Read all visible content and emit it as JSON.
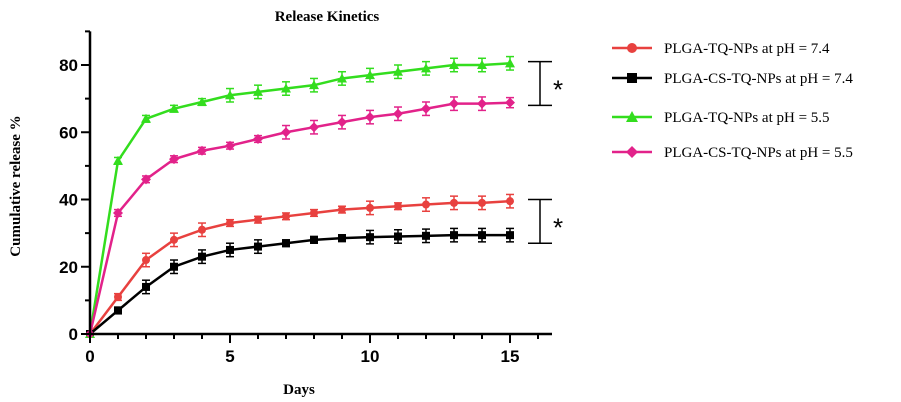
{
  "chart_data": {
    "type": "line",
    "title": "Release Kinetics",
    "xlabel": "Days",
    "ylabel": "Cumulative release %",
    "xlim": [
      0,
      16.5
    ],
    "ylim": [
      0,
      90
    ],
    "x_ticks": [
      0,
      5,
      10,
      15
    ],
    "y_ticks": [
      0,
      20,
      40,
      60,
      80
    ],
    "x": [
      0,
      1,
      2,
      3,
      4,
      5,
      6,
      7,
      8,
      9,
      10,
      11,
      12,
      13,
      14,
      15
    ],
    "series": [
      {
        "name": "PLGA-TQ-NPs at pH = 7.4",
        "color": "#e8413f",
        "marker": "circle",
        "values": [
          0,
          11,
          22,
          28,
          31,
          33,
          34,
          35,
          36,
          37,
          37.5,
          38,
          38.5,
          39,
          39,
          39.5
        ],
        "errors": [
          0,
          1,
          2,
          2,
          2,
          1,
          1,
          1,
          1,
          1,
          2,
          1,
          2,
          2,
          2,
          2
        ]
      },
      {
        "name": "PLGA-CS-TQ-NPs at pH = 7.4",
        "color": "#000000",
        "marker": "square",
        "values": [
          0,
          7,
          14,
          20,
          23,
          25,
          26,
          27,
          28,
          28.5,
          28.8,
          29,
          29.2,
          29.4,
          29.4,
          29.4
        ],
        "errors": [
          0,
          1,
          2,
          2,
          2,
          2,
          2,
          1,
          1,
          1,
          2,
          2,
          2,
          2,
          2,
          2
        ]
      },
      {
        "name": "PLGA-TQ-NPs at pH = 5.5",
        "color": "#33dd1e",
        "marker": "triangle",
        "values": [
          0,
          51.5,
          64,
          67,
          69,
          71,
          72,
          73,
          74,
          76,
          77,
          78,
          79,
          80,
          80,
          80.5
        ],
        "errors": [
          0,
          1,
          1,
          1,
          1,
          2,
          2,
          2,
          2,
          2,
          2,
          2,
          2,
          2,
          2,
          2
        ]
      },
      {
        "name": "PLGA-CS-TQ-NPs at pH = 5.5",
        "color": "#e2228a",
        "marker": "diamond",
        "values": [
          0,
          36,
          46,
          52,
          54.5,
          56,
          58,
          60,
          61.5,
          63,
          64.5,
          65.5,
          67,
          68.5,
          68.5,
          68.8
        ],
        "errors": [
          0,
          1,
          1,
          1,
          1,
          1,
          1,
          2,
          2,
          2,
          2,
          2,
          2,
          2,
          2,
          1.5
        ]
      }
    ],
    "annotations": [
      {
        "text": "*",
        "between": [
          1,
          0
        ],
        "y_range": [
          27,
          40
        ]
      },
      {
        "text": "*",
        "between": [
          2,
          3
        ],
        "y_range": [
          68,
          81
        ]
      }
    ],
    "legend": "right",
    "grid": false
  }
}
